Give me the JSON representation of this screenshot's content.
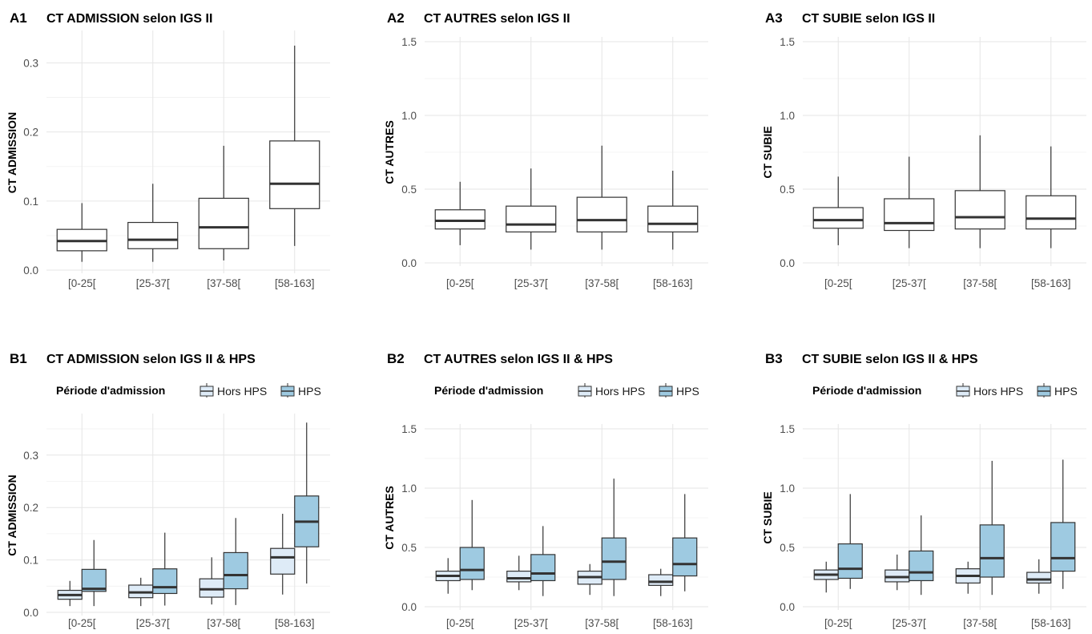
{
  "chart_data": [
    {
      "panel": "A1",
      "type": "boxplot",
      "title": "CT ADMISSION selon IGS II",
      "xlabel": "",
      "ylabel": "CT ADMISSION",
      "ylim": [
        0,
        0.34
      ],
      "yticks": [
        0.0,
        0.1,
        0.2,
        0.3
      ],
      "categories": [
        "[0-25[",
        "[25-37[",
        "[37-58[",
        "[58-163]"
      ],
      "series": [
        {
          "values": [
            {
              "min": 0.012,
              "q1": 0.028,
              "median": 0.042,
              "q3": 0.059,
              "max": 0.097
            },
            {
              "min": 0.012,
              "q1": 0.031,
              "median": 0.044,
              "q3": 0.069,
              "max": 0.125
            },
            {
              "min": 0.014,
              "q1": 0.031,
              "median": 0.062,
              "q3": 0.104,
              "max": 0.18
            },
            {
              "min": 0.035,
              "q1": 0.089,
              "median": 0.125,
              "q3": 0.187,
              "max": 0.325
            }
          ]
        }
      ]
    },
    {
      "panel": "A2",
      "type": "boxplot",
      "title": "CT AUTRES selon IGS II",
      "xlabel": "",
      "ylabel": "CT AUTRES",
      "ylim": [
        0,
        1.5
      ],
      "yticks": [
        0.0,
        0.5,
        1.0,
        1.5
      ],
      "categories": [
        "[0-25[",
        "[25-37[",
        "[37-58[",
        "[58-163]"
      ],
      "series": [
        {
          "values": [
            {
              "min": 0.12,
              "q1": 0.23,
              "median": 0.285,
              "q3": 0.36,
              "max": 0.55
            },
            {
              "min": 0.09,
              "q1": 0.21,
              "median": 0.26,
              "q3": 0.385,
              "max": 0.64
            },
            {
              "min": 0.09,
              "q1": 0.21,
              "median": 0.29,
              "q3": 0.445,
              "max": 0.795
            },
            {
              "min": 0.09,
              "q1": 0.21,
              "median": 0.265,
              "q3": 0.385,
              "max": 0.625
            }
          ]
        }
      ]
    },
    {
      "panel": "A3",
      "type": "boxplot",
      "title": "CT SUBIE selon IGS II",
      "xlabel": "",
      "ylabel": "CT SUBIE",
      "ylim": [
        0,
        1.5
      ],
      "yticks": [
        0.0,
        0.5,
        1.0,
        1.5
      ],
      "categories": [
        "[0-25[",
        "[25-37[",
        "[37-58[",
        "[58-163]"
      ],
      "series": [
        {
          "values": [
            {
              "min": 0.12,
              "q1": 0.235,
              "median": 0.29,
              "q3": 0.375,
              "max": 0.585
            },
            {
              "min": 0.1,
              "q1": 0.22,
              "median": 0.27,
              "q3": 0.435,
              "max": 0.72
            },
            {
              "min": 0.1,
              "q1": 0.23,
              "median": 0.31,
              "q3": 0.49,
              "max": 0.865
            },
            {
              "min": 0.1,
              "q1": 0.23,
              "median": 0.3,
              "q3": 0.455,
              "max": 0.79
            }
          ]
        }
      ]
    },
    {
      "panel": "B1",
      "type": "boxplot",
      "title": "CT ADMISSION selon IGS II & HPS",
      "xlabel": "",
      "ylabel": "CT ADMISSION",
      "ylim": [
        0,
        0.37
      ],
      "yticks": [
        0.0,
        0.1,
        0.2,
        0.3
      ],
      "legend": {
        "title": "Période d'admission",
        "position": "top"
      },
      "categories": [
        "[0-25[",
        "[25-37[",
        "[37-58[",
        "[58-163]"
      ],
      "series": [
        {
          "name": "Hors HPS",
          "color": "#deebf7",
          "values": [
            {
              "min": 0.012,
              "q1": 0.025,
              "median": 0.033,
              "q3": 0.042,
              "max": 0.06
            },
            {
              "min": 0.012,
              "q1": 0.028,
              "median": 0.038,
              "q3": 0.052,
              "max": 0.066
            },
            {
              "min": 0.015,
              "q1": 0.029,
              "median": 0.044,
              "q3": 0.064,
              "max": 0.105
            },
            {
              "min": 0.034,
              "q1": 0.073,
              "median": 0.105,
              "q3": 0.122,
              "max": 0.188
            }
          ]
        },
        {
          "name": "HPS",
          "color": "#9ecae1",
          "values": [
            {
              "min": 0.012,
              "q1": 0.04,
              "median": 0.045,
              "q3": 0.082,
              "max": 0.138
            },
            {
              "min": 0.013,
              "q1": 0.036,
              "median": 0.048,
              "q3": 0.083,
              "max": 0.152
            },
            {
              "min": 0.014,
              "q1": 0.045,
              "median": 0.071,
              "q3": 0.114,
              "max": 0.18
            },
            {
              "min": 0.055,
              "q1": 0.125,
              "median": 0.173,
              "q3": 0.222,
              "max": 0.362
            }
          ]
        }
      ]
    },
    {
      "panel": "B2",
      "type": "boxplot",
      "title": "CT AUTRES selon IGS II & HPS",
      "xlabel": "",
      "ylabel": "CT AUTRES",
      "ylim": [
        0,
        1.5
      ],
      "yticks": [
        0.0,
        0.5,
        1.0,
        1.5
      ],
      "legend": {
        "title": "Période d'admission",
        "position": "top"
      },
      "categories": [
        "[0-25[",
        "[25-37[",
        "[37-58[",
        "[58-163]"
      ],
      "series": [
        {
          "name": "Hors HPS",
          "color": "#deebf7",
          "values": [
            {
              "min": 0.11,
              "q1": 0.22,
              "median": 0.26,
              "q3": 0.3,
              "max": 0.41
            },
            {
              "min": 0.14,
              "q1": 0.21,
              "median": 0.24,
              "q3": 0.3,
              "max": 0.43
            },
            {
              "min": 0.1,
              "q1": 0.19,
              "median": 0.25,
              "q3": 0.3,
              "max": 0.36
            },
            {
              "min": 0.09,
              "q1": 0.18,
              "median": 0.21,
              "q3": 0.27,
              "max": 0.32
            }
          ]
        },
        {
          "name": "HPS",
          "color": "#9ecae1",
          "values": [
            {
              "min": 0.14,
              "q1": 0.23,
              "median": 0.31,
              "q3": 0.5,
              "max": 0.9
            },
            {
              "min": 0.09,
              "q1": 0.22,
              "median": 0.28,
              "q3": 0.44,
              "max": 0.68
            },
            {
              "min": 0.09,
              "q1": 0.23,
              "median": 0.38,
              "q3": 0.58,
              "max": 1.08
            },
            {
              "min": 0.13,
              "q1": 0.26,
              "median": 0.36,
              "q3": 0.58,
              "max": 0.95
            }
          ]
        }
      ]
    },
    {
      "panel": "B3",
      "type": "boxplot",
      "title": "CT SUBIE selon IGS II & HPS",
      "xlabel": "",
      "ylabel": "CT SUBIE",
      "ylim": [
        0,
        1.5
      ],
      "yticks": [
        0.0,
        0.5,
        1.0,
        1.5
      ],
      "legend": {
        "title": "Période d'admission",
        "position": "top"
      },
      "categories": [
        "[0-25[",
        "[25-37[",
        "[37-58[",
        "[58-163]"
      ],
      "series": [
        {
          "name": "Hors HPS",
          "color": "#deebf7",
          "values": [
            {
              "min": 0.12,
              "q1": 0.23,
              "median": 0.27,
              "q3": 0.31,
              "max": 0.38
            },
            {
              "min": 0.14,
              "q1": 0.21,
              "median": 0.25,
              "q3": 0.31,
              "max": 0.44
            },
            {
              "min": 0.11,
              "q1": 0.2,
              "median": 0.26,
              "q3": 0.32,
              "max": 0.38
            },
            {
              "min": 0.11,
              "q1": 0.2,
              "median": 0.23,
              "q3": 0.29,
              "max": 0.4
            }
          ]
        },
        {
          "name": "HPS",
          "color": "#9ecae1",
          "values": [
            {
              "min": 0.15,
              "q1": 0.24,
              "median": 0.32,
              "q3": 0.53,
              "max": 0.95
            },
            {
              "min": 0.1,
              "q1": 0.22,
              "median": 0.29,
              "q3": 0.47,
              "max": 0.77
            },
            {
              "min": 0.1,
              "q1": 0.25,
              "median": 0.41,
              "q3": 0.69,
              "max": 1.23
            },
            {
              "min": 0.15,
              "q1": 0.3,
              "median": 0.41,
              "q3": 0.71,
              "max": 1.24
            }
          ]
        }
      ]
    }
  ]
}
